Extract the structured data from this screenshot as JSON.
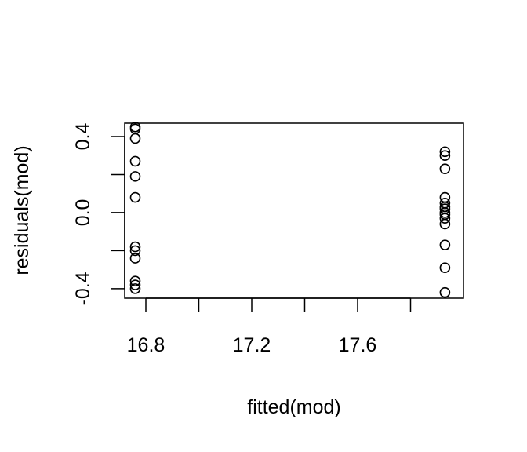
{
  "chart_data": {
    "type": "scatter",
    "title": "",
    "xlabel": "fitted(mod)",
    "ylabel": "residuals(mod)",
    "xlim": [
      16.72,
      18.0
    ],
    "ylim": [
      -0.45,
      0.47
    ],
    "xticks": [
      16.8,
      17.0,
      17.2,
      17.4,
      17.6,
      17.8
    ],
    "xtick_labels": [
      "16.8",
      "",
      "17.2",
      "",
      "17.6",
      ""
    ],
    "yticks": [
      -0.4,
      -0.2,
      0.0,
      0.2,
      0.4
    ],
    "ytick_labels": [
      "-0.4",
      "",
      "0.0",
      "",
      "0.4"
    ],
    "grid": false,
    "series": [
      {
        "x": [
          16.76,
          16.76,
          16.76,
          16.76,
          16.76,
          16.76,
          16.76,
          16.76,
          16.76,
          16.76,
          16.76,
          16.76,
          17.93,
          17.93,
          17.93,
          17.93,
          17.93,
          17.93,
          17.93,
          17.93,
          17.93,
          17.93,
          17.93,
          17.93,
          17.93,
          17.93
        ],
        "y": [
          0.45,
          0.44,
          0.39,
          0.27,
          0.19,
          0.08,
          -0.18,
          -0.2,
          -0.24,
          -0.36,
          -0.38,
          -0.4,
          0.32,
          0.3,
          0.23,
          0.08,
          0.05,
          0.03,
          -0.01,
          -0.03,
          -0.06,
          -0.17,
          -0.29,
          -0.42,
          0.02,
          0.0
        ]
      }
    ]
  }
}
